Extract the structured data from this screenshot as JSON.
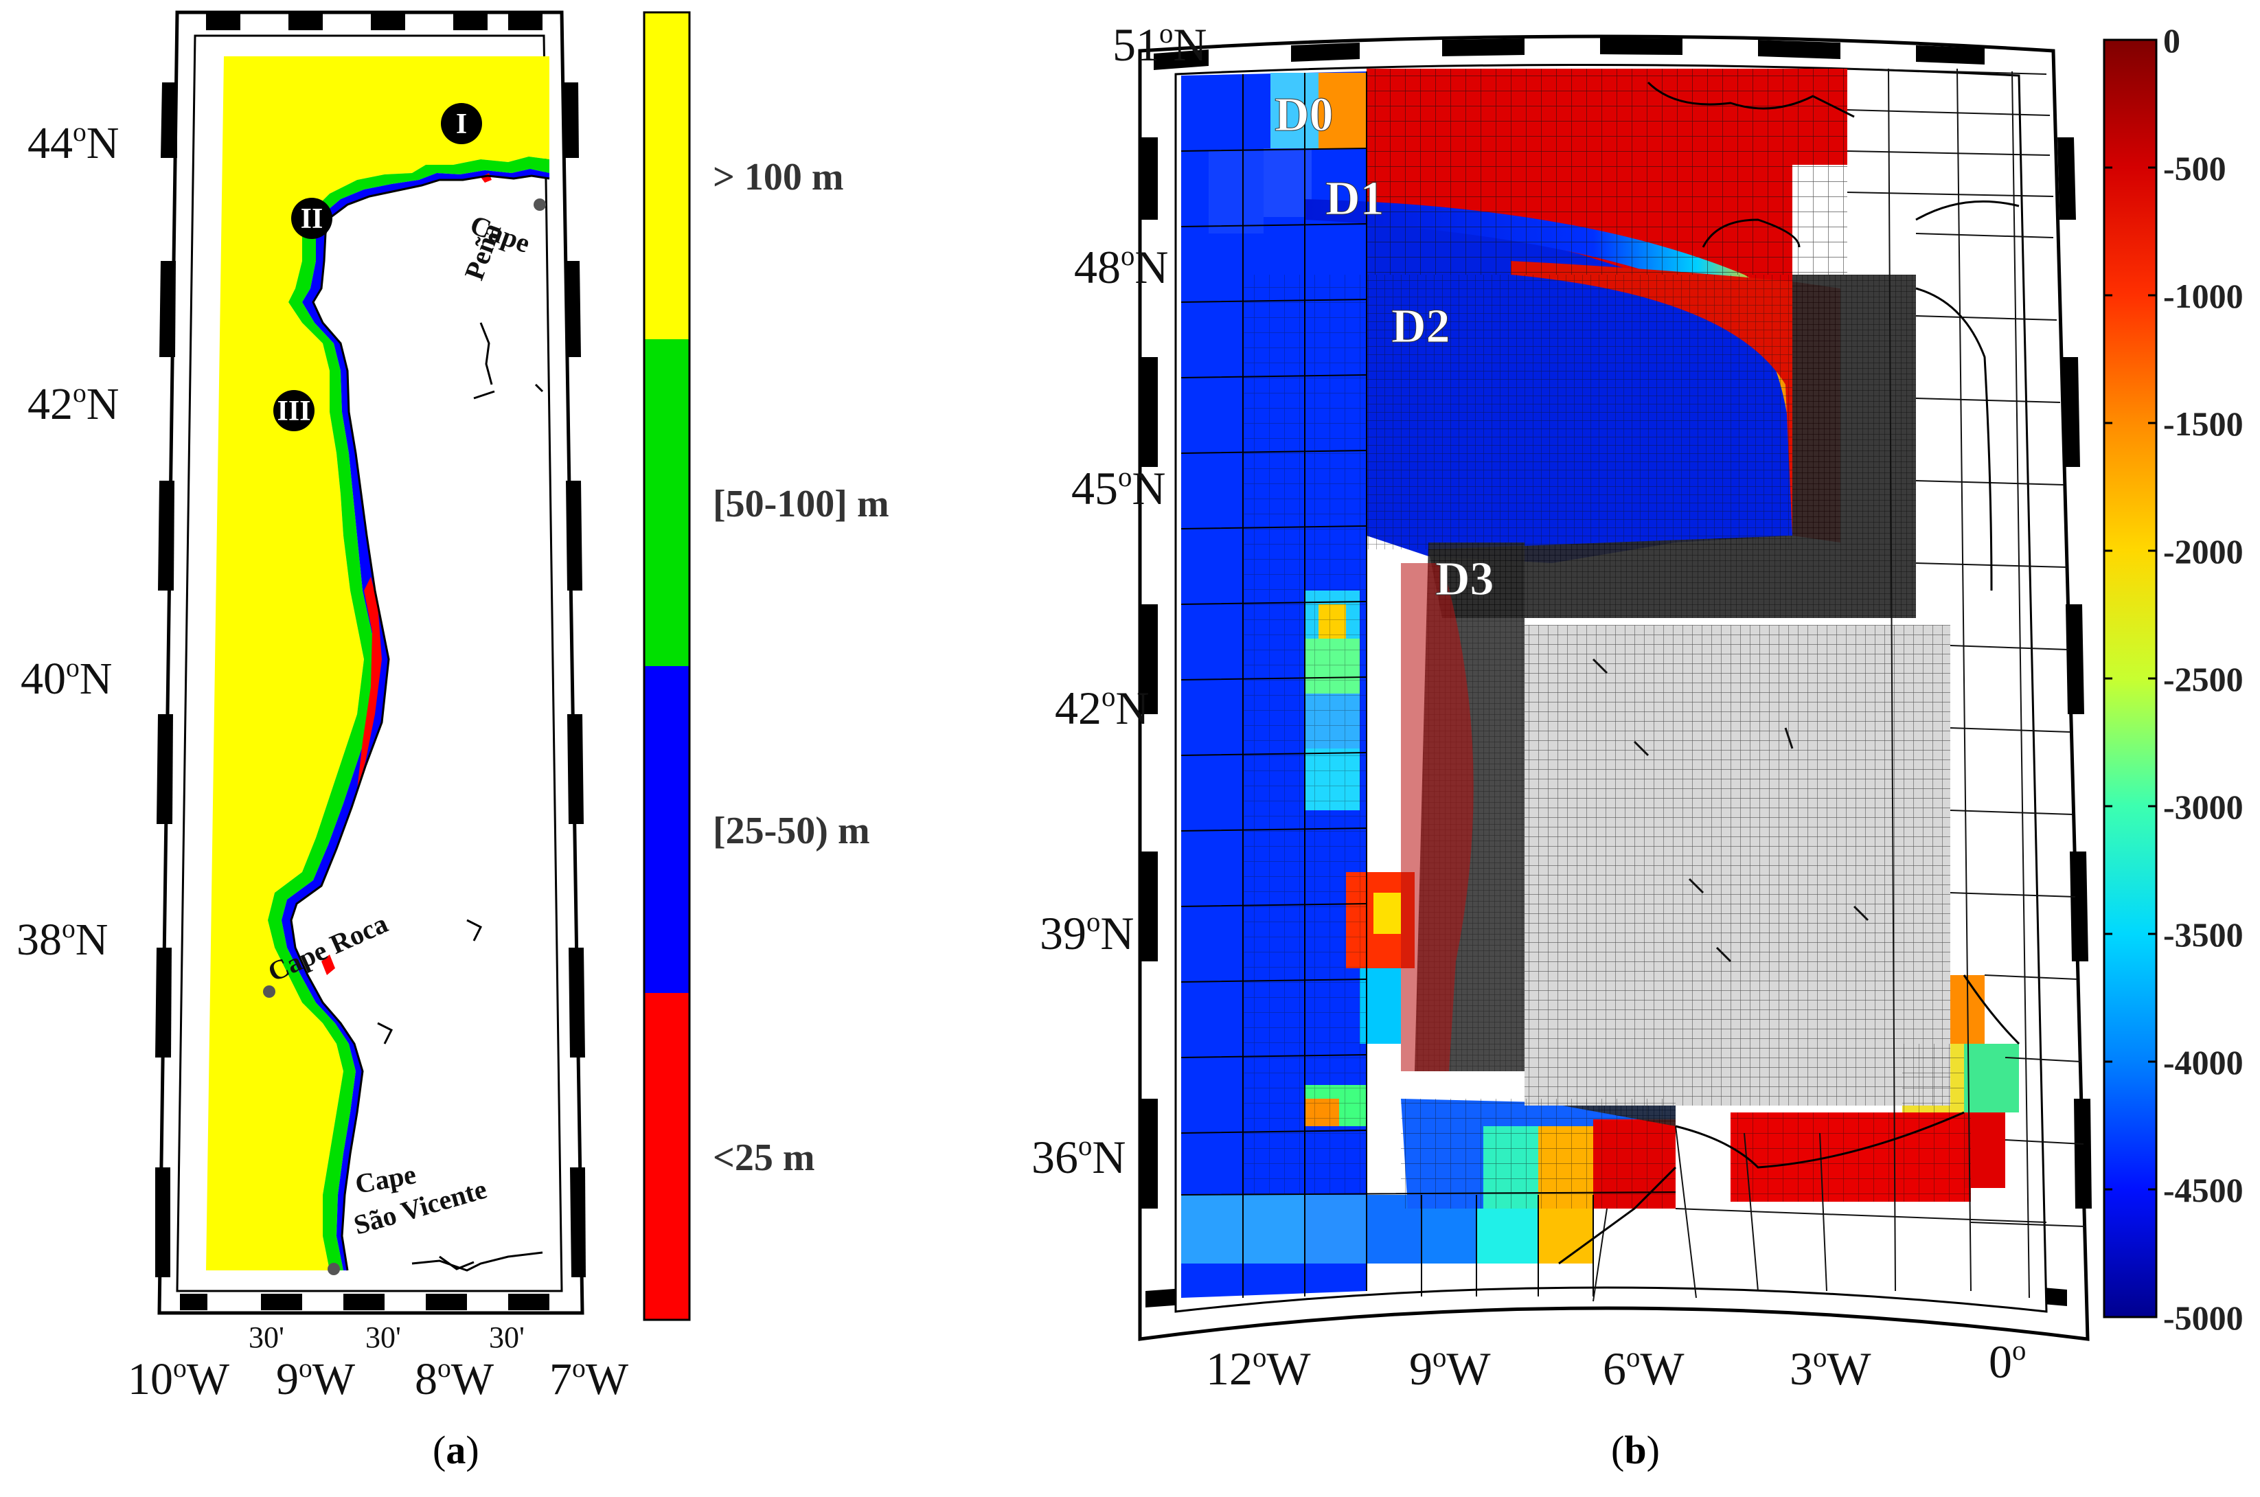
{
  "panel_a": {
    "lat_ticks": [
      {
        "deg": "44",
        "h": "N"
      },
      {
        "deg": "42",
        "h": "N"
      },
      {
        "deg": "40",
        "h": "N"
      },
      {
        "deg": "38",
        "h": "N"
      }
    ],
    "lon_ticks": [
      {
        "deg": "10",
        "h": "W"
      },
      {
        "min": "30'"
      },
      {
        "deg": "9",
        "h": "W"
      },
      {
        "min": "30'"
      },
      {
        "deg": "8",
        "h": "W"
      },
      {
        "min": "30'"
      },
      {
        "deg": "7",
        "h": "W"
      }
    ],
    "site_markers": [
      "I",
      "II",
      "III"
    ],
    "places": {
      "cape_pena_1": "Cape",
      "cape_pena_2": "Peña",
      "cape_roca": "Cape Roca",
      "cape_sv_1": "Cape",
      "cape_sv_2": "São Vicente"
    },
    "legend": {
      "classes": [
        {
          "label": "> 100 m",
          "color": "#ffff00"
        },
        {
          "label": "[50-100] m",
          "color": "#00e000"
        },
        {
          "label": "[25-50) m",
          "color": "#0000ff"
        },
        {
          "label": "<25 m",
          "color": "#ff0000"
        }
      ]
    },
    "caption": {
      "open": "(",
      "letter": "a",
      "close": ")"
    }
  },
  "panel_b": {
    "domains": [
      "D0",
      "D1",
      "D2",
      "D3"
    ],
    "lat_ticks": [
      {
        "deg": "51",
        "h": "N"
      },
      {
        "deg": "48",
        "h": "N"
      },
      {
        "deg": "45",
        "h": "N"
      },
      {
        "deg": "42",
        "h": "N"
      },
      {
        "deg": "39",
        "h": "N"
      },
      {
        "deg": "36",
        "h": "N"
      }
    ],
    "lon_ticks": [
      {
        "deg": "12",
        "h": "W"
      },
      {
        "deg": "9",
        "h": "W"
      },
      {
        "deg": "6",
        "h": "W"
      },
      {
        "deg": "3",
        "h": "W"
      },
      {
        "deg": "0",
        "h": ""
      }
    ],
    "colorbar": {
      "ticks": [
        "0",
        "-500",
        "-1000",
        "-1500",
        "-2000",
        "-2500",
        "-3000",
        "-3500",
        "-4000",
        "-4500",
        "-5000"
      ],
      "colors": [
        "#7f0000",
        "#d40000",
        "#ff3000",
        "#ff8c00",
        "#ffd800",
        "#c8ff30",
        "#3cffb0",
        "#00d8ff",
        "#0080ff",
        "#0010ff",
        "#00008f"
      ]
    },
    "caption": {
      "open": "(",
      "letter": "b",
      "close": ")"
    }
  }
}
